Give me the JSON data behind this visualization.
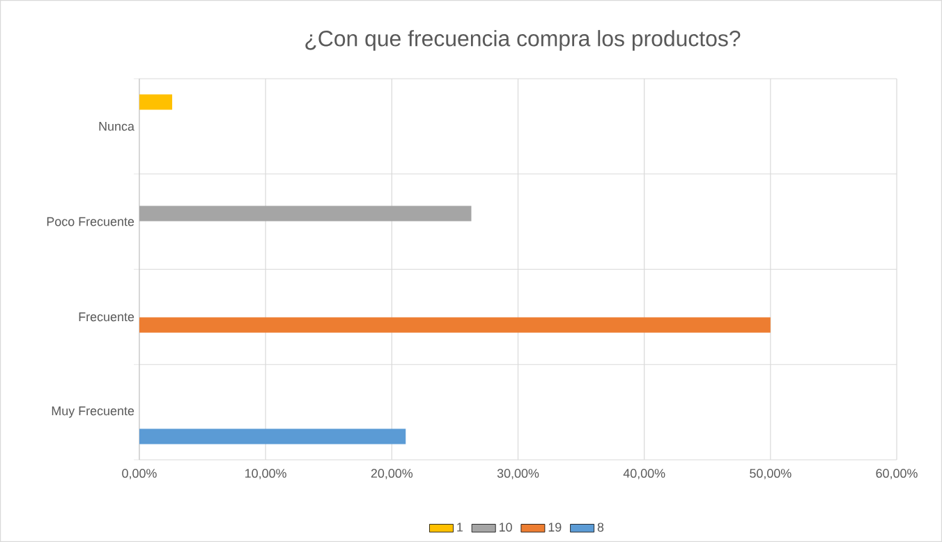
{
  "chart_data": {
    "type": "bar",
    "orientation": "horizontal",
    "title": "¿Con que frecuencia compra los productos?",
    "categories": [
      "Nunca",
      "Poco Frecuente",
      "Frecuente",
      "Muy Frecuente"
    ],
    "series": [
      {
        "name": "1",
        "color": "#ffc000",
        "values": [
          2.6,
          null,
          null,
          null
        ]
      },
      {
        "name": "10",
        "color": "#a5a5a5",
        "values": [
          null,
          26.3,
          null,
          null
        ]
      },
      {
        "name": "19",
        "color": "#ed7d31",
        "values": [
          null,
          null,
          50,
          null
        ]
      },
      {
        "name": "8",
        "color": "#5b9bd5",
        "values": [
          null,
          null,
          null,
          21.1
        ]
      }
    ],
    "xlim": [
      0,
      60
    ],
    "xticks": [
      {
        "value": 0,
        "label": "0,00%"
      },
      {
        "value": 10,
        "label": "10,00%"
      },
      {
        "value": 20,
        "label": "20,00%"
      },
      {
        "value": 30,
        "label": "30,00%"
      },
      {
        "value": 40,
        "label": "40,00%"
      },
      {
        "value": 50,
        "label": "50,00%"
      },
      {
        "value": 60,
        "label": "60,00%"
      }
    ],
    "grid": true,
    "legend": "bottom"
  }
}
